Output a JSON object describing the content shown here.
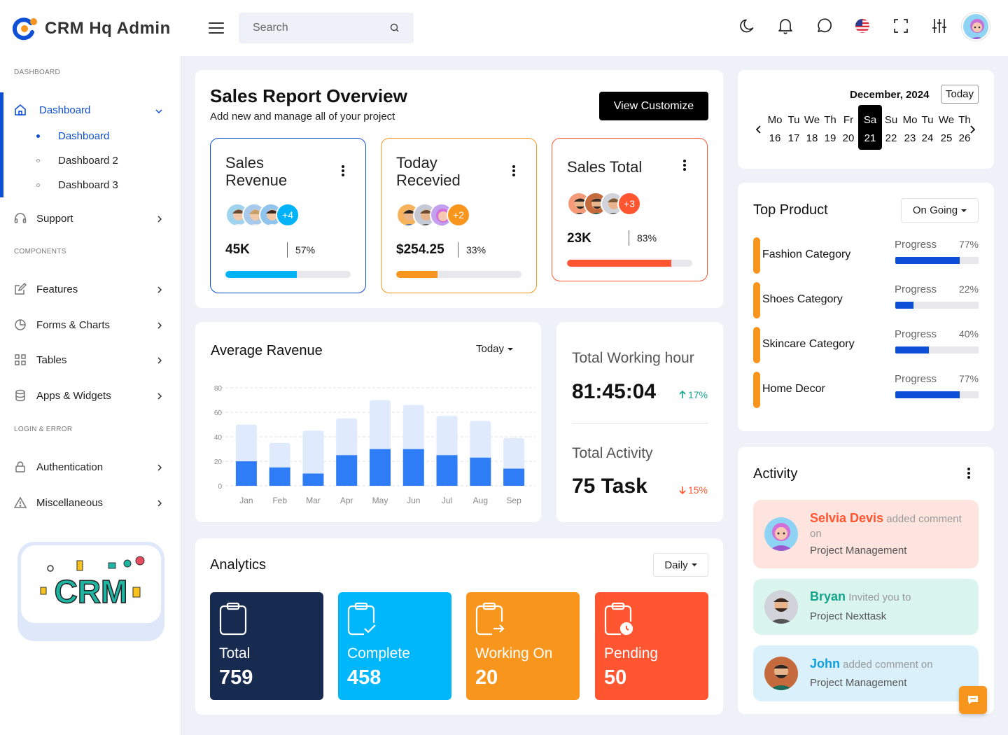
{
  "app": {
    "title": "CRM Hq Admin"
  },
  "search": {
    "placeholder": "Search"
  },
  "sidebar": {
    "sections": [
      "DASHBOARD",
      "COMPONENTS",
      "LOGIN & ERROR"
    ],
    "dashboard": {
      "label": "Dashboard",
      "children": [
        "Dashboard",
        "Dashboard 2",
        "Dashboard 3"
      ]
    },
    "items": [
      "Support",
      "Features",
      "Forms & Charts",
      "Tables",
      "Apps & Widgets",
      "Authentication",
      "Miscellaneous"
    ],
    "promo_text": "CRM"
  },
  "sales_report": {
    "title": "Sales Report Overview",
    "subtitle": "Add new and manage all of your project",
    "button": "View Customize",
    "cards": [
      {
        "title_line1": "Sales",
        "title_line2": "Revenue",
        "extra": "+4",
        "value": "45K",
        "percent": "57%",
        "progress": 57,
        "color": "#00b2f7"
      },
      {
        "title_line1": "Today",
        "title_line2": "Recevied",
        "extra": "+2",
        "value": "$254.25",
        "percent": "33%",
        "progress": 33,
        "color": "#f7951c"
      },
      {
        "title_line1": "Sales Total",
        "title_line2": "",
        "extra": "+3",
        "value": "23K",
        "percent": "83%",
        "progress": 83,
        "color": "#ff5530"
      }
    ]
  },
  "avg_revenue": {
    "title": "Average Ravenue",
    "filter": "Today"
  },
  "chart_data": {
    "type": "bar",
    "categories": [
      "Jan",
      "Feb",
      "Mar",
      "Apr",
      "May",
      "Jun",
      "Jul",
      "Aug",
      "Sep"
    ],
    "series": [
      {
        "values": [
          20,
          15,
          10,
          25,
          30,
          30,
          25,
          23,
          14
        ]
      },
      {
        "values": [
          50,
          35,
          45,
          55,
          70,
          66,
          57,
          53,
          39
        ]
      }
    ],
    "ylim": [
      0,
      80
    ],
    "yticks": [
      0,
      20,
      40,
      60,
      80
    ],
    "stacked": false,
    "grid": true,
    "colors": [
      "#2e7cf6",
      "#dfebfd"
    ]
  },
  "metrics": {
    "working": {
      "label": "Total Working hour",
      "value": "81:45:04",
      "delta": "17%"
    },
    "activity": {
      "label": "Total Activity",
      "value": "75 Task",
      "delta": "15%"
    }
  },
  "analytics": {
    "title": "Analytics",
    "filter": "Daily",
    "tiles": [
      {
        "label": "Total",
        "value": "759",
        "color": "#172a4f"
      },
      {
        "label": "Complete",
        "value": "458",
        "color": "#00b7fb"
      },
      {
        "label": "Working On",
        "value": "20",
        "color": "#f7951c"
      },
      {
        "label": "Pending",
        "value": "50",
        "color": "#ff5530"
      }
    ]
  },
  "calendar": {
    "month": "December, 2024",
    "today_button": "Today",
    "days": [
      {
        "dow": "Mo",
        "date": "16"
      },
      {
        "dow": "Tu",
        "date": "17"
      },
      {
        "dow": "We",
        "date": "18"
      },
      {
        "dow": "Th",
        "date": "19"
      },
      {
        "dow": "Fr",
        "date": "20"
      },
      {
        "dow": "Sa",
        "date": "21"
      },
      {
        "dow": "Su",
        "date": "22"
      },
      {
        "dow": "Mo",
        "date": "23"
      },
      {
        "dow": "Tu",
        "date": "24"
      },
      {
        "dow": "We",
        "date": "25"
      },
      {
        "dow": "Th",
        "date": "26"
      }
    ],
    "selected_index": 5
  },
  "top_product": {
    "title": "Top Product",
    "filter": "On Going",
    "items": [
      {
        "name": "Fashion Category",
        "label": "Progress",
        "percent": "77%",
        "progress": 77
      },
      {
        "name": "Shoes Category",
        "label": "Progress",
        "percent": "22%",
        "progress": 22
      },
      {
        "name": "Skincare Category",
        "label": "Progress",
        "percent": "40%",
        "progress": 40
      },
      {
        "name": "Home Decor",
        "label": "Progress",
        "percent": "77%",
        "progress": 77
      }
    ]
  },
  "activity": {
    "title": "Activity",
    "items": [
      {
        "name": "Selvia Devis",
        "text": " added comment on",
        "sub": "Project Management",
        "color": "#ff5530",
        "bg": "#fde4df"
      },
      {
        "name": "Bryan",
        "text": " Invited you to",
        "sub": "Project Nexttask",
        "color": "#12a58a",
        "bg": "#d9f5ee"
      },
      {
        "name": "John",
        "text": " added comment on",
        "sub": "Project Management",
        "color": "#0d9fe0",
        "bg": "#daf1fb"
      }
    ]
  }
}
